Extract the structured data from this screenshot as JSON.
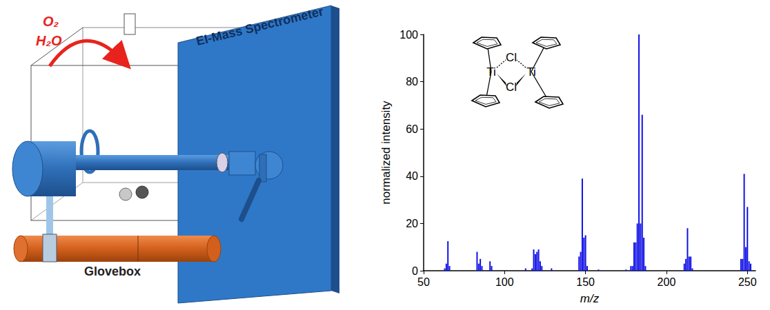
{
  "chart_data": {
    "type": "bar",
    "x_label": "m/z",
    "y_label": "normalized intensity",
    "x": [
      63,
      64,
      65,
      66,
      83,
      84,
      85,
      86,
      91,
      92,
      113,
      117,
      118,
      119,
      120,
      121,
      122,
      123,
      129,
      146,
      147,
      148,
      149,
      150,
      151,
      158,
      175,
      178,
      179,
      180,
      181,
      182,
      183,
      184,
      185,
      186,
      187,
      211,
      212,
      213,
      214,
      215,
      216,
      246,
      247,
      248,
      249,
      250,
      251,
      252
    ],
    "values": [
      1,
      3,
      12.5,
      2,
      8,
      3,
      5,
      2,
      4,
      2,
      1,
      1,
      9,
      7,
      8,
      9,
      4,
      2,
      1,
      6,
      8,
      39,
      14,
      15,
      2,
      0.5,
      0.5,
      2,
      2,
      12,
      12,
      20,
      100,
      20,
      66,
      14,
      2,
      3,
      5,
      18,
      6,
      6,
      1,
      5,
      5,
      41,
      10,
      27,
      4,
      3
    ],
    "color": "#1010e6",
    "xlim": [
      50,
      255
    ],
    "xticks": [
      50,
      100,
      150,
      200,
      250
    ],
    "ylim": [
      0,
      100
    ],
    "yticks": [
      0,
      20,
      40,
      60,
      80,
      100
    ],
    "grid": false
  },
  "inset_structure": {
    "bridge_atoms": [
      "Cl",
      "Cl"
    ],
    "metal_atoms": [
      "Ti",
      "Ti"
    ]
  },
  "schematic": {
    "arrow_labels": [
      "O₂",
      "H₂O"
    ],
    "panel_label": "EI-Mass Spectrometer",
    "box_label": "Glovebox"
  }
}
